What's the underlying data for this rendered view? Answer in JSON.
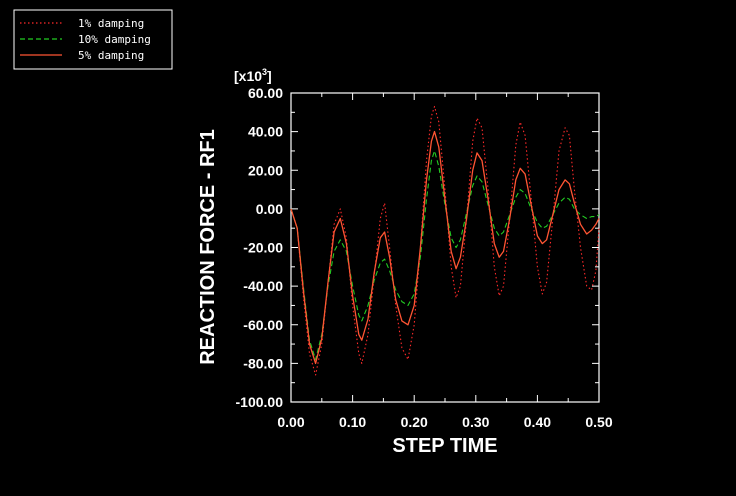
{
  "chart_data": {
    "type": "line",
    "xlabel": "STEP TIME",
    "ylabel": "REACTION FORCE - RF1",
    "y_multiplier": "[x10",
    "y_multiplier_exp": "3",
    "y_multiplier_close": "]",
    "xlim": [
      0.0,
      0.5
    ],
    "ylim": [
      -100.0,
      60.0
    ],
    "xticks": [
      {
        "value": 0.0,
        "label": "0.00"
      },
      {
        "value": 0.1,
        "label": "0.10"
      },
      {
        "value": 0.2,
        "label": "0.20"
      },
      {
        "value": 0.3,
        "label": "0.30"
      },
      {
        "value": 0.4,
        "label": "0.40"
      },
      {
        "value": 0.5,
        "label": "0.50"
      }
    ],
    "yticks": [
      {
        "value": 60,
        "label": "60.00"
      },
      {
        "value": 40,
        "label": "40.00"
      },
      {
        "value": 20,
        "label": "20.00"
      },
      {
        "value": 0,
        "label": "0.00"
      },
      {
        "value": -20,
        "label": "-20.00"
      },
      {
        "value": -40,
        "label": "-40.00"
      },
      {
        "value": -60,
        "label": "-60.00"
      },
      {
        "value": -80,
        "label": "-80.00"
      },
      {
        "value": -100,
        "label": "-100.00"
      }
    ],
    "grid": false,
    "legend_position": "top-left",
    "series": [
      {
        "name": "1% damping",
        "color": "#ff2a2a",
        "dash": "dotted",
        "points": [
          [
            0.0,
            0
          ],
          [
            0.01,
            -10
          ],
          [
            0.02,
            -45
          ],
          [
            0.03,
            -75
          ],
          [
            0.04,
            -86
          ],
          [
            0.05,
            -70
          ],
          [
            0.06,
            -38
          ],
          [
            0.07,
            -8
          ],
          [
            0.08,
            0
          ],
          [
            0.09,
            -15
          ],
          [
            0.1,
            -50
          ],
          [
            0.11,
            -75
          ],
          [
            0.115,
            -80
          ],
          [
            0.125,
            -65
          ],
          [
            0.135,
            -35
          ],
          [
            0.145,
            -5
          ],
          [
            0.152,
            3
          ],
          [
            0.16,
            -20
          ],
          [
            0.17,
            -50
          ],
          [
            0.18,
            -72
          ],
          [
            0.19,
            -78
          ],
          [
            0.2,
            -60
          ],
          [
            0.21,
            -20
          ],
          [
            0.22,
            25
          ],
          [
            0.228,
            48
          ],
          [
            0.233,
            53
          ],
          [
            0.24,
            45
          ],
          [
            0.25,
            10
          ],
          [
            0.26,
            -30
          ],
          [
            0.268,
            -46
          ],
          [
            0.275,
            -40
          ],
          [
            0.285,
            -5
          ],
          [
            0.295,
            35
          ],
          [
            0.302,
            47
          ],
          [
            0.31,
            42
          ],
          [
            0.32,
            10
          ],
          [
            0.33,
            -30
          ],
          [
            0.338,
            -45
          ],
          [
            0.345,
            -40
          ],
          [
            0.355,
            -5
          ],
          [
            0.365,
            33
          ],
          [
            0.372,
            45
          ],
          [
            0.38,
            38
          ],
          [
            0.39,
            5
          ],
          [
            0.4,
            -30
          ],
          [
            0.408,
            -44
          ],
          [
            0.415,
            -38
          ],
          [
            0.425,
            -5
          ],
          [
            0.435,
            30
          ],
          [
            0.445,
            42
          ],
          [
            0.452,
            38
          ],
          [
            0.46,
            10
          ],
          [
            0.47,
            -20
          ],
          [
            0.48,
            -40
          ],
          [
            0.488,
            -42
          ],
          [
            0.495,
            -32
          ],
          [
            0.5,
            -10
          ]
        ]
      },
      {
        "name": "10% damping",
        "color": "#22cc22",
        "dash": "dashed",
        "points": [
          [
            0.0,
            0
          ],
          [
            0.01,
            -10
          ],
          [
            0.02,
            -40
          ],
          [
            0.03,
            -68
          ],
          [
            0.04,
            -78
          ],
          [
            0.05,
            -65
          ],
          [
            0.06,
            -40
          ],
          [
            0.07,
            -22
          ],
          [
            0.08,
            -16
          ],
          [
            0.09,
            -22
          ],
          [
            0.1,
            -40
          ],
          [
            0.11,
            -55
          ],
          [
            0.115,
            -58
          ],
          [
            0.125,
            -50
          ],
          [
            0.135,
            -37
          ],
          [
            0.145,
            -28
          ],
          [
            0.152,
            -26
          ],
          [
            0.16,
            -32
          ],
          [
            0.17,
            -42
          ],
          [
            0.18,
            -48
          ],
          [
            0.19,
            -50
          ],
          [
            0.2,
            -44
          ],
          [
            0.21,
            -25
          ],
          [
            0.22,
            5
          ],
          [
            0.228,
            25
          ],
          [
            0.233,
            30
          ],
          [
            0.24,
            22
          ],
          [
            0.25,
            2
          ],
          [
            0.26,
            -15
          ],
          [
            0.268,
            -20
          ],
          [
            0.275,
            -16
          ],
          [
            0.285,
            -2
          ],
          [
            0.295,
            12
          ],
          [
            0.302,
            17
          ],
          [
            0.31,
            14
          ],
          [
            0.32,
            2
          ],
          [
            0.33,
            -10
          ],
          [
            0.338,
            -14
          ],
          [
            0.345,
            -12
          ],
          [
            0.355,
            -3
          ],
          [
            0.365,
            6
          ],
          [
            0.372,
            10
          ],
          [
            0.38,
            8
          ],
          [
            0.39,
            0
          ],
          [
            0.4,
            -7
          ],
          [
            0.408,
            -10
          ],
          [
            0.415,
            -9
          ],
          [
            0.425,
            -3
          ],
          [
            0.435,
            3
          ],
          [
            0.445,
            6
          ],
          [
            0.452,
            5
          ],
          [
            0.46,
            0
          ],
          [
            0.47,
            -3
          ],
          [
            0.48,
            -5
          ],
          [
            0.488,
            -4
          ],
          [
            0.495,
            -4
          ],
          [
            0.5,
            -3
          ]
        ]
      },
      {
        "name": "5% damping",
        "color": "#ff5533",
        "dash": "solid",
        "points": [
          [
            0.0,
            0
          ],
          [
            0.01,
            -10
          ],
          [
            0.02,
            -42
          ],
          [
            0.03,
            -70
          ],
          [
            0.04,
            -80
          ],
          [
            0.05,
            -67
          ],
          [
            0.06,
            -38
          ],
          [
            0.07,
            -12
          ],
          [
            0.08,
            -5
          ],
          [
            0.09,
            -18
          ],
          [
            0.1,
            -45
          ],
          [
            0.11,
            -65
          ],
          [
            0.115,
            -68
          ],
          [
            0.125,
            -57
          ],
          [
            0.135,
            -33
          ],
          [
            0.145,
            -15
          ],
          [
            0.152,
            -12
          ],
          [
            0.16,
            -25
          ],
          [
            0.17,
            -47
          ],
          [
            0.18,
            -58
          ],
          [
            0.19,
            -60
          ],
          [
            0.2,
            -50
          ],
          [
            0.21,
            -20
          ],
          [
            0.22,
            15
          ],
          [
            0.228,
            35
          ],
          [
            0.233,
            40
          ],
          [
            0.24,
            32
          ],
          [
            0.25,
            5
          ],
          [
            0.26,
            -22
          ],
          [
            0.268,
            -31
          ],
          [
            0.275,
            -25
          ],
          [
            0.285,
            -5
          ],
          [
            0.295,
            20
          ],
          [
            0.302,
            29
          ],
          [
            0.31,
            25
          ],
          [
            0.32,
            5
          ],
          [
            0.33,
            -18
          ],
          [
            0.338,
            -25
          ],
          [
            0.345,
            -22
          ],
          [
            0.355,
            -5
          ],
          [
            0.365,
            15
          ],
          [
            0.372,
            21
          ],
          [
            0.38,
            18
          ],
          [
            0.39,
            2
          ],
          [
            0.4,
            -14
          ],
          [
            0.408,
            -18
          ],
          [
            0.415,
            -16
          ],
          [
            0.425,
            -3
          ],
          [
            0.435,
            10
          ],
          [
            0.445,
            15
          ],
          [
            0.452,
            13
          ],
          [
            0.46,
            3
          ],
          [
            0.47,
            -8
          ],
          [
            0.48,
            -13
          ],
          [
            0.488,
            -11
          ],
          [
            0.495,
            -8
          ],
          [
            0.5,
            -5
          ]
        ]
      }
    ]
  }
}
